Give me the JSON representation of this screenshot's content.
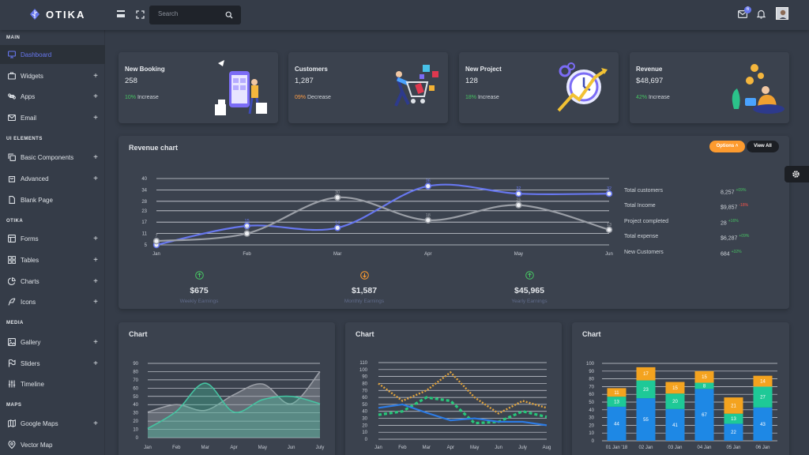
{
  "brand": {
    "name": "OTIKA"
  },
  "topbar": {
    "search_placeholder": "Search",
    "mail_badge": "6"
  },
  "sidebar": {
    "sections": [
      "MAIN",
      "UI ELEMENTS",
      "OTIKA",
      "MEDIA",
      "MAPS"
    ],
    "items": [
      {
        "label": "Dashboard",
        "icon": "monitor-icon",
        "plus": false,
        "active": true
      },
      {
        "label": "Widgets",
        "icon": "briefcase-icon",
        "plus": true
      },
      {
        "label": "Apps",
        "icon": "command-icon",
        "plus": true
      },
      {
        "label": "Email",
        "icon": "mail-icon",
        "plus": true
      },
      {
        "label": "Basic Components",
        "icon": "copy-icon",
        "plus": true
      },
      {
        "label": "Advanced",
        "icon": "shopping-bag-icon",
        "plus": true
      },
      {
        "label": "Blank Page",
        "icon": "file-icon",
        "plus": false
      },
      {
        "label": "Forms",
        "icon": "layout-icon",
        "plus": true
      },
      {
        "label": "Tables",
        "icon": "grid-icon",
        "plus": true
      },
      {
        "label": "Charts",
        "icon": "pie-chart-icon",
        "plus": true
      },
      {
        "label": "Icons",
        "icon": "feather-icon",
        "plus": true
      },
      {
        "label": "Gallery",
        "icon": "image-icon",
        "plus": true
      },
      {
        "label": "Sliders",
        "icon": "flag-icon",
        "plus": true
      },
      {
        "label": "Timeline",
        "icon": "sliders-icon",
        "plus": false
      },
      {
        "label": "Google Maps",
        "icon": "map-icon",
        "plus": true
      },
      {
        "label": "Vector Map",
        "icon": "map-pin-icon",
        "plus": false
      }
    ]
  },
  "stats": [
    {
      "title": "New Booking",
      "value": "258",
      "change": "10%",
      "change_text": "Increase",
      "change_color": "#47c363"
    },
    {
      "title": "Customers",
      "value": "1,287",
      "change": "09%",
      "change_text": "Decrease",
      "change_color": "#fc9c46"
    },
    {
      "title": "New Project",
      "value": "128",
      "change": "18%",
      "change_text": "Increase",
      "change_color": "#47c363"
    },
    {
      "title": "Revenue",
      "value": "$48,697",
      "change": "42%",
      "change_text": "Increase",
      "change_color": "#47c363"
    }
  ],
  "revenue": {
    "title": "Revenue chart",
    "options_label": "Options",
    "view_all_label": "View All",
    "side_stats": [
      {
        "label": "Total customers",
        "value": "8,257",
        "delta": "+09%",
        "delta_color": "#47c363"
      },
      {
        "label": "Total Income",
        "value": "$9,857",
        "delta": "-18%",
        "delta_color": "#fc544b"
      },
      {
        "label": "Project completed",
        "value": "28",
        "delta": "+16%",
        "delta_color": "#47c363"
      },
      {
        "label": "Total expense",
        "value": "$6,287",
        "delta": "+09%",
        "delta_color": "#47c363"
      },
      {
        "label": "New Customers",
        "value": "684",
        "delta": "+32%",
        "delta_color": "#47c363"
      }
    ],
    "earnings": [
      {
        "value": "$675",
        "label": "Weekly Earnings",
        "icon": "arrow-up-circle-icon",
        "color": "#47c363"
      },
      {
        "value": "$1,587",
        "label": "Monthly Earnings",
        "icon": "arrow-down-circle-icon",
        "color": "#fd9b2f"
      },
      {
        "value": "$45,965",
        "label": "Yearly Earnings",
        "icon": "arrow-up-circle-icon",
        "color": "#47c363"
      }
    ]
  },
  "bottom_titles": [
    "Chart",
    "Chart",
    "Chart"
  ],
  "chart_data": [
    {
      "type": "line",
      "categories": [
        "Jan",
        "Feb",
        "Mar",
        "Apr",
        "May",
        "Jun"
      ],
      "yticks": [
        5,
        11,
        17,
        23,
        28,
        34,
        40
      ],
      "ylim": [
        5,
        40
      ],
      "series": [
        {
          "values": [
            5,
            15,
            14,
            36,
            32,
            32
          ],
          "color": "#6777ef",
          "labels": [
            "5",
            "15",
            "14",
            "36",
            "32",
            "32"
          ]
        },
        {
          "values": [
            7,
            11,
            30,
            18,
            26,
            13
          ],
          "color": "#9a9ea6",
          "labels": [
            "7",
            "11",
            "30",
            "18",
            "26",
            "13"
          ]
        }
      ]
    },
    {
      "type": "area",
      "title": "Chart",
      "categories": [
        "Jan",
        "Feb",
        "Mar",
        "Apr",
        "May",
        "Jun",
        "July"
      ],
      "yticks": [
        0,
        10,
        20,
        30,
        40,
        50,
        60,
        70,
        80,
        90
      ],
      "ylim": [
        0,
        90
      ],
      "series": [
        {
          "values": [
            31,
            40,
            33,
            52,
            65,
            41,
            80
          ],
          "color": "#9a9ea6"
        },
        {
          "values": [
            11,
            32,
            66,
            31,
            46,
            50,
            41
          ],
          "color": "#45c3a1"
        }
      ]
    },
    {
      "type": "line",
      "title": "Chart",
      "categories": [
        "Jan",
        "Feb",
        "Mar",
        "Apr",
        "May",
        "Jun",
        "July",
        "Aug"
      ],
      "yticks": [
        0,
        10,
        20,
        30,
        40,
        50,
        60,
        70,
        80,
        90,
        100,
        110
      ],
      "ylim": [
        0,
        110
      ],
      "series": [
        {
          "values": [
            80,
            55,
            70,
            96,
            60,
            37,
            55,
            45
          ],
          "color": "#e0a33e",
          "style": "dotted"
        },
        {
          "values": [
            35,
            40,
            60,
            55,
            23,
            25,
            40,
            32
          ],
          "color": "#27c77a",
          "style": "dashed"
        },
        {
          "values": [
            45,
            50,
            38,
            27,
            30,
            25,
            25,
            20
          ],
          "color": "#2c7be5",
          "style": "solid"
        }
      ]
    },
    {
      "type": "bar",
      "title": "Chart",
      "categories": [
        "01 Jan '18",
        "02 Jan",
        "03 Jan",
        "04 Jan",
        "05 Jan",
        "06 Jan"
      ],
      "yticks": [
        0,
        10,
        20,
        30,
        40,
        50,
        60,
        70,
        80,
        90,
        100
      ],
      "ylim": [
        0,
        100
      ],
      "stacked": true,
      "series": [
        {
          "values": [
            44,
            55,
            41,
            67,
            22,
            43
          ],
          "color": "#1e88e5"
        },
        {
          "values": [
            13,
            23,
            20,
            8,
            13,
            27
          ],
          "color": "#1ec997"
        },
        {
          "values": [
            11,
            17,
            15,
            15,
            21,
            14
          ],
          "color": "#f4a31f"
        }
      ]
    }
  ]
}
